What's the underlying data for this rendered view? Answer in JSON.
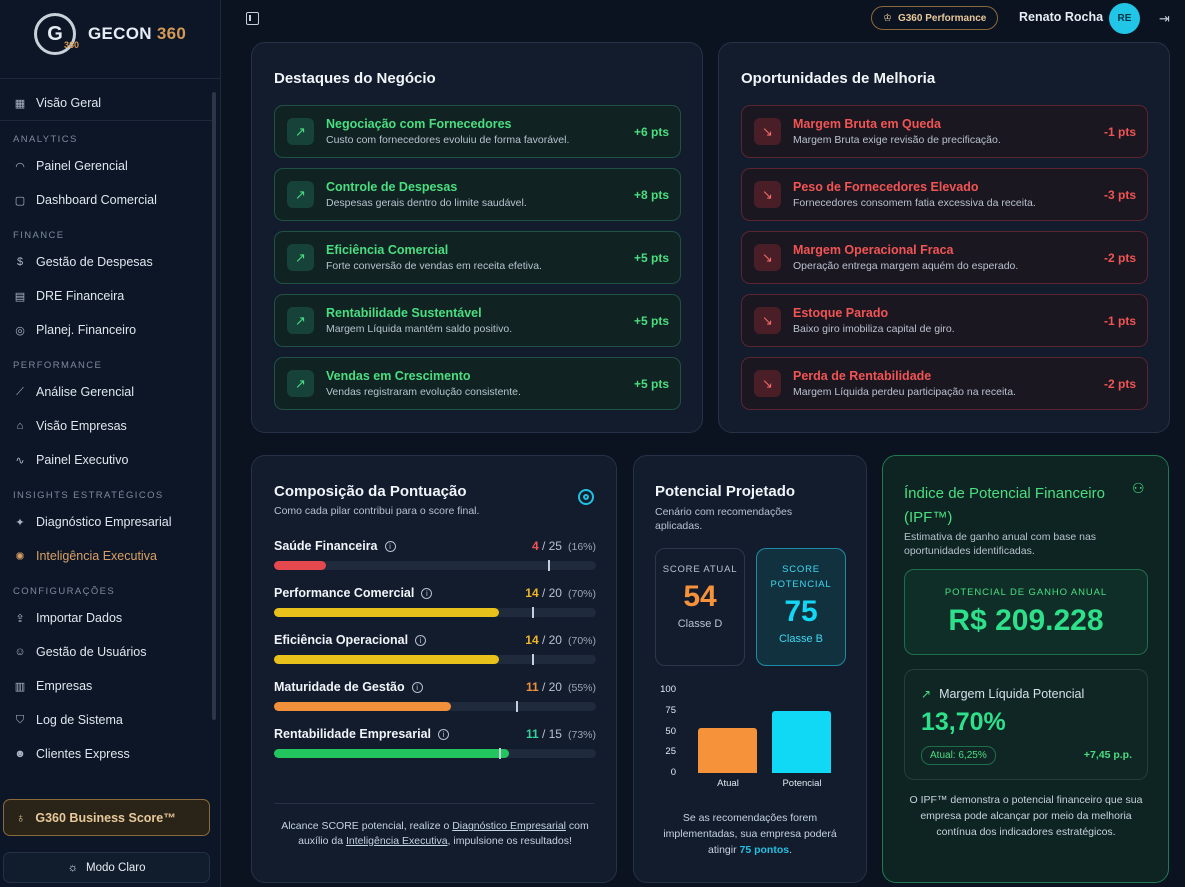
{
  "brand": {
    "mark": "G",
    "mark_sub": "360",
    "name_a": "GECON",
    "name_b": "360"
  },
  "nav": {
    "top": "Visão Geral",
    "analytics": {
      "label": "ANALYTICS",
      "items": [
        "Painel Gerencial",
        "Dashboard Comercial"
      ]
    },
    "finance": {
      "label": "FINANCE",
      "items": [
        "Gestão de Despesas",
        "DRE Financeira",
        "Planej. Financeiro"
      ]
    },
    "performance": {
      "label": "PERFORMANCE",
      "items": [
        "Análise Gerencial",
        "Visão Empresas",
        "Painel Executivo"
      ]
    },
    "insights": {
      "label": "INSIGHTS ESTRATÉGICOS",
      "items": [
        "Diagnóstico Empresarial",
        "Inteligência Executiva"
      ]
    },
    "config": {
      "label": "CONFIGURAÇÕES",
      "items": [
        "Importar Dados",
        "Gestão de Usuários",
        "Empresas",
        "Log de Sistema",
        "Clientes Express"
      ]
    }
  },
  "score_button": "G360 Business Score™",
  "mode_button": "Modo Claro",
  "topbar": {
    "badge": "G360 Performance",
    "user": "Renato Rocha",
    "initials": "RE"
  },
  "destaques": {
    "title": "Destaques do Negócio",
    "items": [
      {
        "title": "Negociação com Fornecedores",
        "desc": "Custo com fornecedores evoluiu de forma favorável.",
        "pts": "+6 pts"
      },
      {
        "title": "Controle de Despesas",
        "desc": "Despesas gerais dentro do limite saudável.",
        "pts": "+8 pts"
      },
      {
        "title": "Eficiência Comercial",
        "desc": "Forte conversão de vendas em receita efetiva.",
        "pts": "+5 pts"
      },
      {
        "title": "Rentabilidade Sustentável",
        "desc": "Margem Líquida mantém saldo positivo.",
        "pts": "+5 pts"
      },
      {
        "title": "Vendas em Crescimento",
        "desc": "Vendas registraram evolução consistente.",
        "pts": "+5 pts"
      }
    ]
  },
  "oportunidades": {
    "title": "Oportunidades de Melhoria",
    "items": [
      {
        "title": "Margem Bruta em Queda",
        "desc": "Margem Bruta exige revisão de precificação.",
        "pts": "-1 pts"
      },
      {
        "title": "Peso de Fornecedores Elevado",
        "desc": "Fornecedores consomem fatia excessiva da receita.",
        "pts": "-3 pts"
      },
      {
        "title": "Margem Operacional Fraca",
        "desc": "Operação entrega margem aquém do esperado.",
        "pts": "-2 pts"
      },
      {
        "title": "Estoque Parado",
        "desc": "Baixo giro imobiliza capital de giro.",
        "pts": "-1 pts"
      },
      {
        "title": "Perda de Rentabilidade",
        "desc": "Margem Líquida perdeu participação na receita.",
        "pts": "-2 pts"
      }
    ]
  },
  "composicao": {
    "title": "Composição da Pontuação",
    "subtitle": "Como cada pilar contribui para o score final.",
    "pillars": [
      {
        "name": "Saúde Financeira",
        "score": "4",
        "max": "/ 25",
        "pct": "(16%)",
        "fill": 0.16,
        "mark": 0.85,
        "color": "#e5484d",
        "scolor": "#f25454"
      },
      {
        "name": "Performance Comercial",
        "score": "14",
        "max": "/ 20",
        "pct": "(70%)",
        "fill": 0.7,
        "mark": 0.8,
        "color": "#e8c11a",
        "scolor": "#f0b429"
      },
      {
        "name": "Eficiência Operacional",
        "score": "14",
        "max": "/ 20",
        "pct": "(70%)",
        "fill": 0.7,
        "mark": 0.8,
        "color": "#e8c11a",
        "scolor": "#f0b429"
      },
      {
        "name": "Maturidade de Gestão",
        "score": "11",
        "max": "/ 20",
        "pct": "(55%)",
        "fill": 0.55,
        "mark": 0.75,
        "color": "#f0903a",
        "scolor": "#f0903a"
      },
      {
        "name": "Rentabilidade Empresarial",
        "score": "11",
        "max": "/ 15",
        "pct": "(73%)",
        "fill": 0.73,
        "mark": 0.7,
        "color": "#22c55e",
        "scolor": "#34d399"
      }
    ],
    "footer_a": "Alcance SCORE potencial, realize o ",
    "footer_link1": "Diagnóstico Empresarial",
    "footer_b": " com auxílio da ",
    "footer_link2": "Inteligência Executiva",
    "footer_c": ", impulsione os resultados!"
  },
  "potencial": {
    "title": "Potencial Projetado",
    "subtitle": "Cenário com recomendações aplicadas.",
    "atual": {
      "label": "SCORE ATUAL",
      "value": "54",
      "class": "Classe D"
    },
    "pot": {
      "label": "SCORE POTENCIAL",
      "value": "75",
      "class": "Classe B"
    },
    "footer_a": "Se as recomendações forem implementadas, sua empresa poderá atingir ",
    "footer_b": "75 pontos",
    "footer_c": "."
  },
  "chart_data": {
    "type": "bar",
    "categories": [
      "Atual",
      "Potencial"
    ],
    "values": [
      54,
      75
    ],
    "ylim": [
      0,
      100
    ],
    "yticks": [
      100,
      75,
      50,
      25,
      0
    ],
    "colors": [
      "#f5923a",
      "#0fd9f5"
    ]
  },
  "ipf": {
    "title": "Índice de Potencial Financeiro (IPF™)",
    "subtitle": "Estimativa de ganho anual com base nas oportunidades identificadas.",
    "gain_label": "POTENCIAL DE GANHO ANUAL",
    "gain_value": "R$ 209.228",
    "margin_label": "Margem Líquida Potencial",
    "margin_value": "13,70%",
    "atual": "Atual: 6,25%",
    "delta": "+7,45 p.p.",
    "footer": "O IPF™ demonstra o potencial financeiro que sua empresa pode alcançar por meio da melhoria contínua dos indicadores estratégicos."
  }
}
